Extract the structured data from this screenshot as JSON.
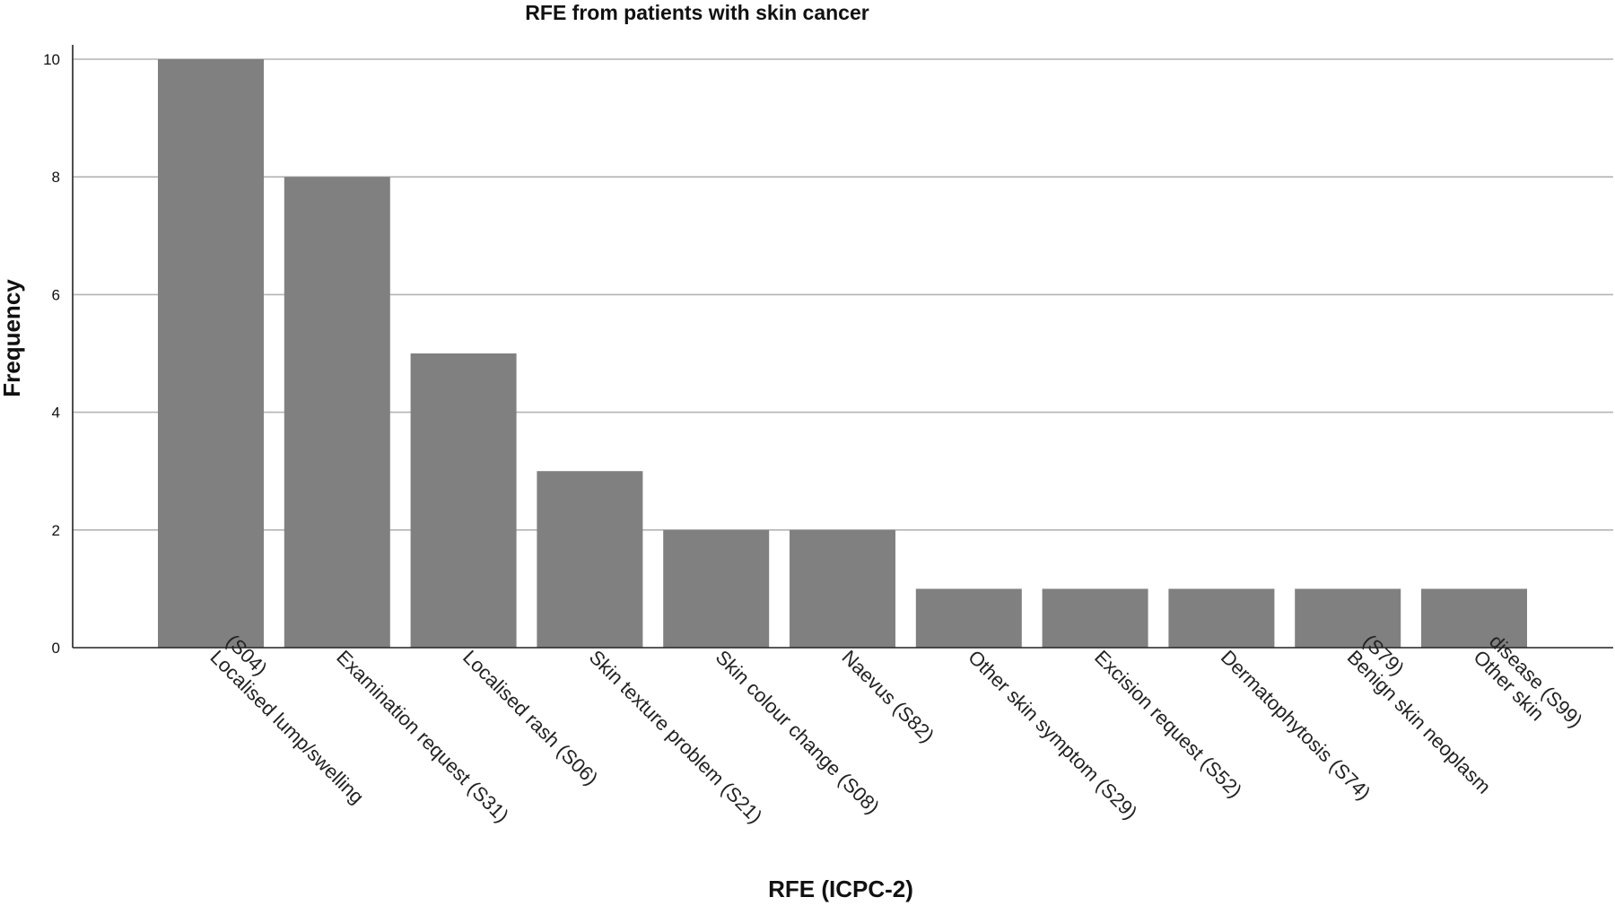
{
  "chart_data": {
    "type": "bar",
    "title": "RFE from patients with skin cancer",
    "xlabel": "RFE (ICPC-2)",
    "ylabel": "Frequency",
    "ylim": [
      0,
      10.5
    ],
    "yticks": [
      0,
      2,
      4,
      6,
      8,
      10
    ],
    "grid": true,
    "bar_color": "#808080",
    "categories": [
      [
        "Localised lump/swelling",
        "(S04)"
      ],
      [
        "Examination request (S31)"
      ],
      [
        "Localised rash (S06)"
      ],
      [
        "Skin texture problem (S21)"
      ],
      [
        "Skin colour change (S08)"
      ],
      [
        "Naevus (S82)"
      ],
      [
        "Other skin symptom (S29)"
      ],
      [
        "Excision request (S52)"
      ],
      [
        "Dermatophytosis (S74)"
      ],
      [
        "Benign skin neoplasm",
        "(S79)"
      ],
      [
        "Other skin",
        "disease (S99)"
      ]
    ],
    "values": [
      10,
      8,
      5,
      3,
      2,
      2,
      1,
      1,
      1,
      1,
      1
    ]
  }
}
